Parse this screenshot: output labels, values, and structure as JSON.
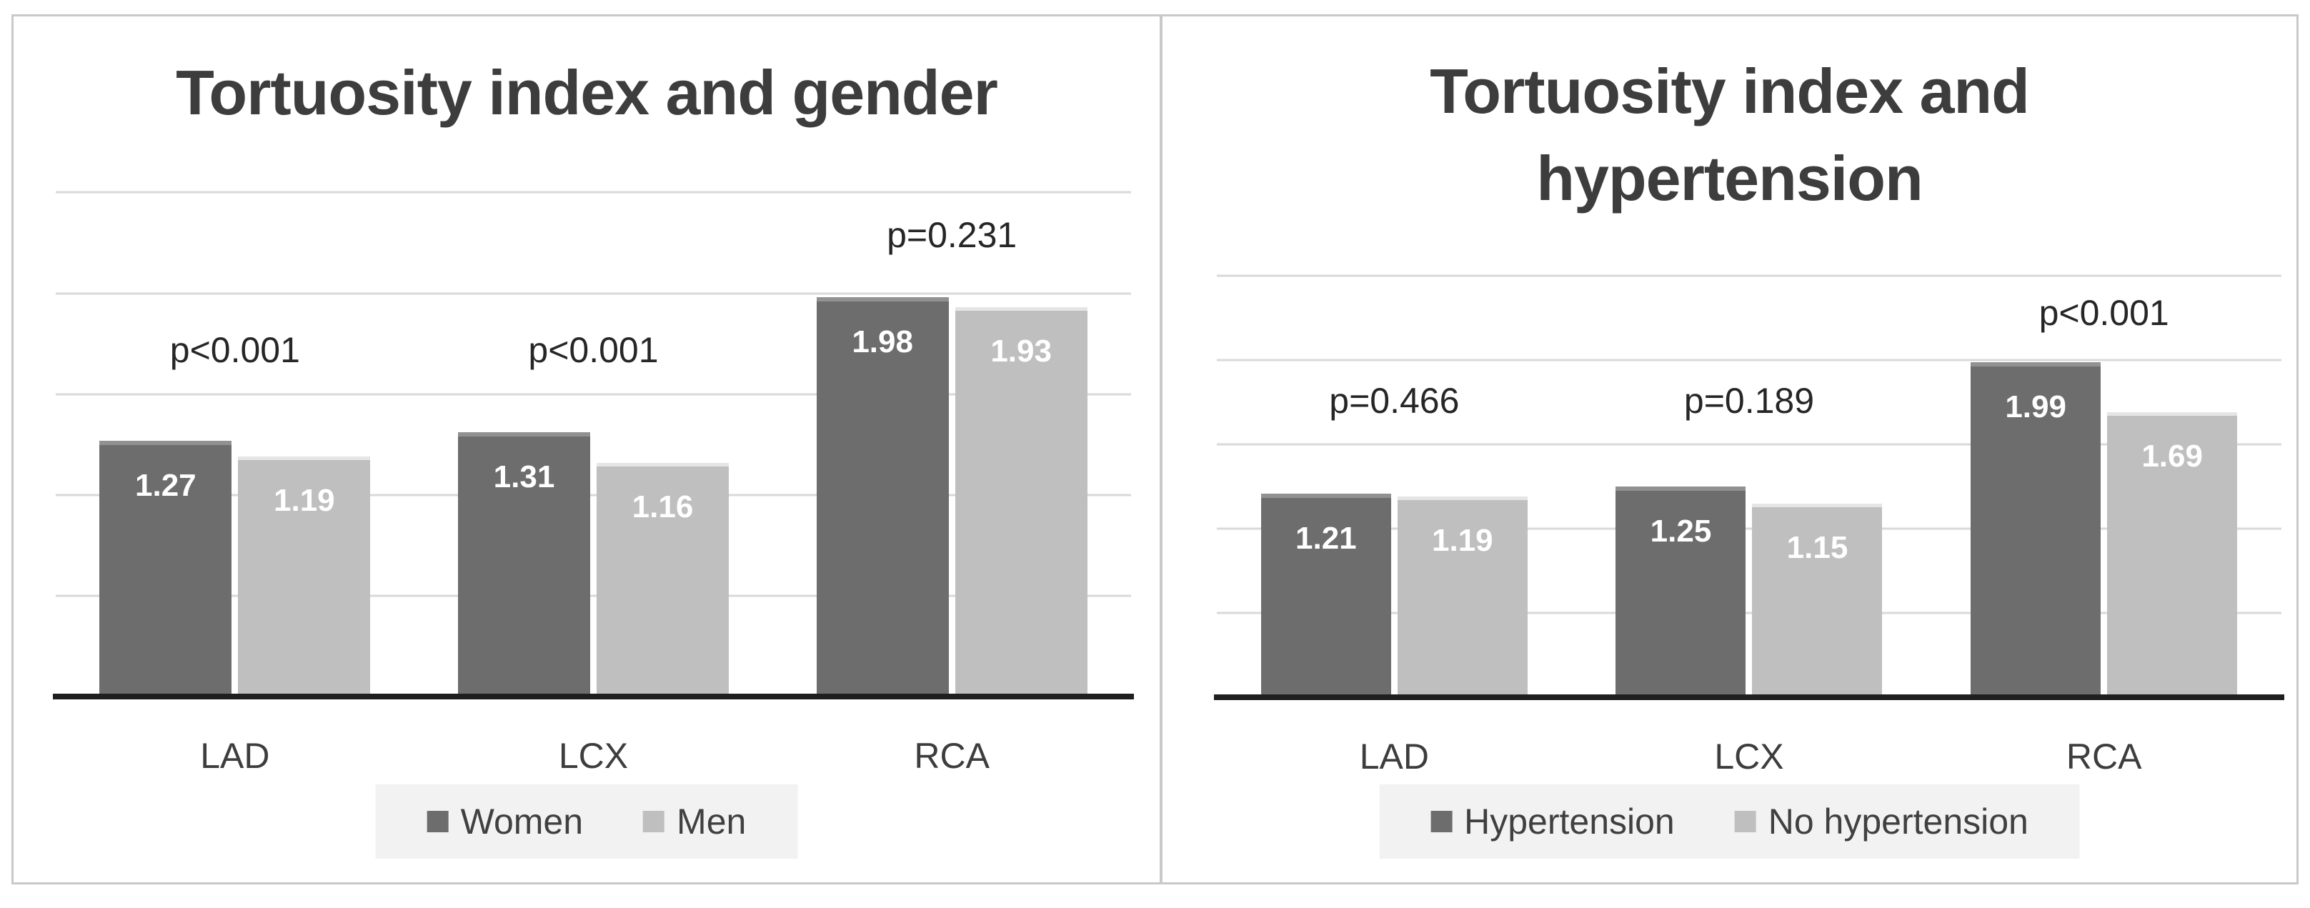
{
  "figure": {
    "description": "Two clustered bar charts comparing coronary artery tortuosity index"
  },
  "chart_data": [
    {
      "type": "bar",
      "title": "Tortuosity index and gender",
      "categories": [
        "LAD",
        "LCX",
        "RCA"
      ],
      "series": [
        {
          "name": "Women",
          "color": "#6d6d6d",
          "values": [
            1.27,
            1.31,
            1.98
          ]
        },
        {
          "name": "Men",
          "color": "#bfbfbf",
          "values": [
            1.19,
            1.16,
            1.93
          ]
        }
      ],
      "p_annotations": [
        {
          "text": "p<0.001",
          "y": 1.72
        },
        {
          "text": "p<0.001",
          "y": 1.72
        },
        {
          "text": "p=0.231",
          "y": 2.29
        }
      ],
      "xlabel": "",
      "ylabel": "",
      "ylim": [
        0,
        2.7
      ],
      "gridlines": [
        0.5,
        1.0,
        1.5,
        2.0,
        2.5
      ],
      "grid": true,
      "legend_position": "bottom"
    },
    {
      "type": "bar",
      "title": "Tortuosity index and hypertension",
      "categories": [
        "LAD",
        "LCX",
        "RCA"
      ],
      "series": [
        {
          "name": "Hypertension",
          "color": "#6d6d6d",
          "values": [
            1.21,
            1.25,
            1.99
          ]
        },
        {
          "name": "No hypertension",
          "color": "#bfbfbf",
          "values": [
            1.19,
            1.15,
            1.69
          ]
        }
      ],
      "p_annotations": [
        {
          "text": "p=0.466",
          "y": 1.76
        },
        {
          "text": "p=0.189",
          "y": 1.76
        },
        {
          "text": "p<0.001",
          "y": 2.28
        }
      ],
      "xlabel": "",
      "ylabel": "",
      "ylim": [
        0,
        2.7
      ],
      "gridlines": [
        0.5,
        1.0,
        1.5,
        2.0,
        2.5
      ],
      "grid": true,
      "legend_position": "bottom"
    }
  ]
}
